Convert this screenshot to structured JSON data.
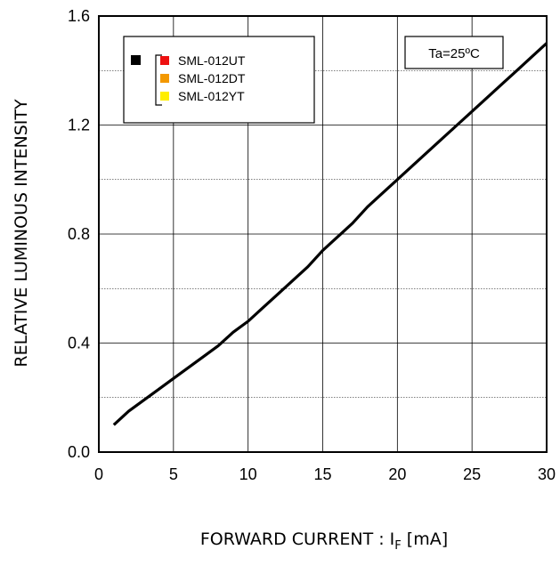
{
  "chart_data": {
    "type": "line",
    "title": "",
    "xlabel": "FORWARD CURRENT : I",
    "xlabel_sub": "F",
    "xlabel_unit": " [mA]",
    "ylabel": "RELATIVE LUMINOUS INTENSITY",
    "xlim": [
      0,
      30
    ],
    "ylim": [
      0,
      1.6
    ],
    "x_ticks": [
      "0",
      "5",
      "10",
      "15",
      "20",
      "25",
      "30"
    ],
    "y_ticks": [
      "0.0",
      "0.4",
      "0.8",
      "1.2",
      "1.6"
    ],
    "grid": true,
    "legend_position": "top-left",
    "annotation": "Ta=25ºC",
    "legend": {
      "marker_color": "#000000",
      "items": [
        {
          "name": "SML-012UT",
          "color": "#ee1111"
        },
        {
          "name": "SML-012DT",
          "color": "#f39800"
        },
        {
          "name": "SML-012YT",
          "color": "#ffee00"
        }
      ]
    },
    "series": [
      {
        "color": "#000000",
        "x": [
          1,
          2,
          3,
          4,
          5,
          6,
          7,
          8,
          9,
          10,
          11,
          12,
          13,
          14,
          15,
          16,
          17,
          18,
          19,
          20,
          21,
          22,
          23,
          24,
          25,
          26,
          27,
          28,
          29,
          30
        ],
        "y": [
          0.1,
          0.15,
          0.19,
          0.23,
          0.27,
          0.31,
          0.35,
          0.39,
          0.44,
          0.48,
          0.53,
          0.58,
          0.63,
          0.68,
          0.74,
          0.79,
          0.84,
          0.9,
          0.95,
          1.0,
          1.05,
          1.1,
          1.15,
          1.2,
          1.25,
          1.3,
          1.35,
          1.4,
          1.45,
          1.5
        ]
      }
    ]
  }
}
